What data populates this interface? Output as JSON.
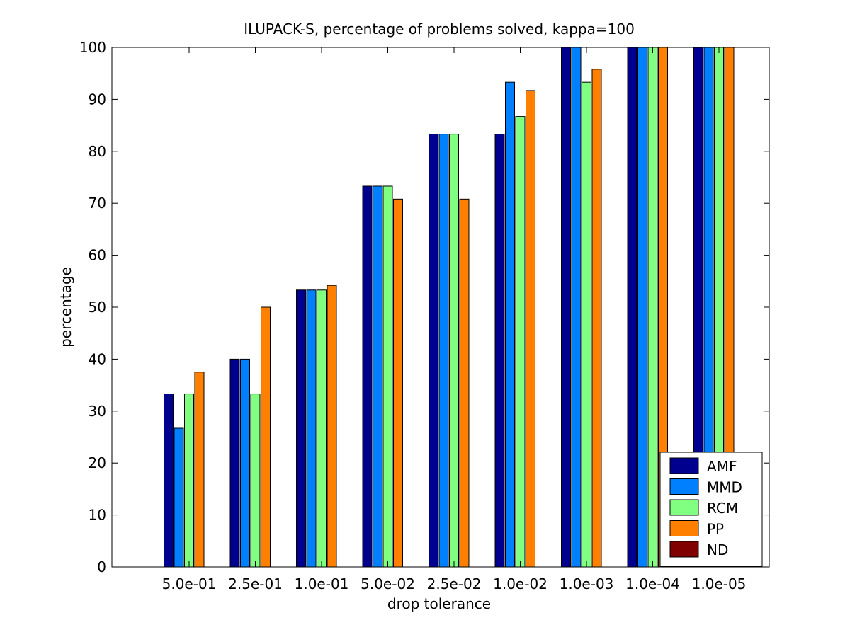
{
  "chart_data": {
    "type": "bar",
    "title": "ILUPACK-S, percentage of problems solved, kappa=100",
    "xlabel": "drop tolerance",
    "ylabel": "percentage",
    "ylim": [
      0,
      100
    ],
    "yticks": [
      0,
      10,
      20,
      30,
      40,
      50,
      60,
      70,
      80,
      90,
      100
    ],
    "categories": [
      "5.0e-01",
      "2.5e-01",
      "1.0e-01",
      "5.0e-02",
      "2.5e-02",
      "1.0e-02",
      "1.0e-03",
      "1.0e-04",
      "1.0e-05"
    ],
    "series": [
      {
        "name": "AMF",
        "color": "#00008f",
        "values": [
          33.3,
          40.0,
          53.3,
          73.3,
          83.3,
          83.3,
          100,
          100,
          100
        ]
      },
      {
        "name": "MMD",
        "color": "#0080ff",
        "values": [
          26.7,
          40.0,
          53.3,
          73.3,
          83.3,
          93.3,
          100,
          100,
          100
        ]
      },
      {
        "name": "RCM",
        "color": "#80ff80",
        "values": [
          33.3,
          33.3,
          53.3,
          73.3,
          83.3,
          86.7,
          93.3,
          100,
          100
        ]
      },
      {
        "name": "PP",
        "color": "#ff8000",
        "values": [
          37.5,
          50.0,
          54.2,
          70.8,
          70.8,
          91.7,
          95.8,
          100,
          100
        ]
      },
      {
        "name": "ND",
        "color": "#800000",
        "values": [
          0,
          0,
          0,
          0,
          0,
          0,
          0,
          0,
          0
        ]
      }
    ],
    "grid": false,
    "legend_position": "bottom-right"
  }
}
